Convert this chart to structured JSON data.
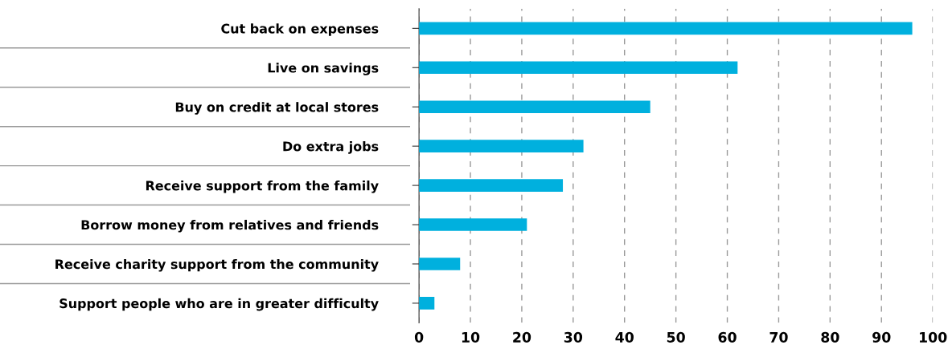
{
  "chart_data": {
    "type": "bar",
    "orientation": "horizontal",
    "categories": [
      "Cut back on expenses",
      "Live on savings",
      "Buy on credit at local stores",
      "Do extra jobs",
      "Receive support from the family",
      "Borrow money from relatives and friends",
      "Receive charity support from the community",
      "Support people who are in greater difficulty"
    ],
    "values": [
      96,
      62,
      45,
      32,
      28,
      21,
      8,
      3
    ],
    "color": "#00b0de",
    "xlim": [
      0,
      100
    ],
    "xticks": [
      0,
      10,
      20,
      30,
      40,
      50,
      60,
      70,
      80,
      90,
      100
    ],
    "grid": "x",
    "legend": false
  }
}
